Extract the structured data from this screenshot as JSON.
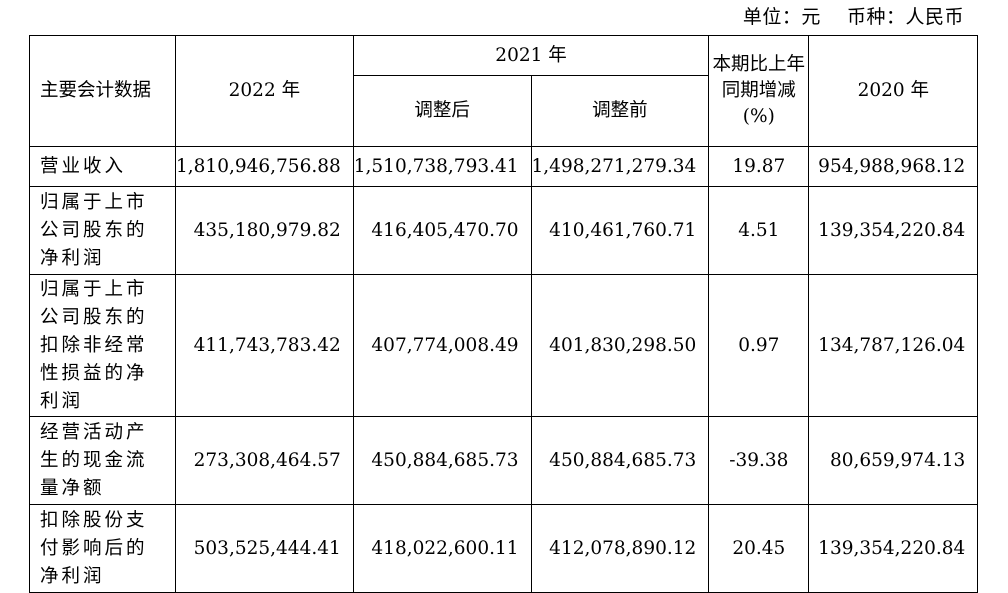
{
  "unit_line": "单位：元    币种：人民币",
  "header": {
    "item": "主要会计数据",
    "y2022": "2022 年",
    "y2021": "2021 年",
    "adjusted_after": "调整后",
    "adjusted_before": "调整前",
    "change": "本期比上年同期增减(%)",
    "y2020": "2020 年"
  },
  "rows": [
    {
      "item": "营业收入",
      "v2022": "1,810,946,756.88",
      "v2021_after": "1,510,738,793.41",
      "v2021_before": "1,498,271,279.34",
      "change": "19.87",
      "v2020": "954,988,968.12"
    },
    {
      "item": "归属于上市公司股东的净利润",
      "v2022": "435,180,979.82",
      "v2021_after": "416,405,470.70",
      "v2021_before": "410,461,760.71",
      "change": "4.51",
      "v2020": "139,354,220.84"
    },
    {
      "item": "归属于上市公司股东的扣除非经常性损益的净利润",
      "v2022": "411,743,783.42",
      "v2021_after": "407,774,008.49",
      "v2021_before": "401,830,298.50",
      "change": "0.97",
      "v2020": "134,787,126.04"
    },
    {
      "item": "经营活动产生的现金流量净额",
      "v2022": "273,308,464.57",
      "v2021_after": "450,884,685.73",
      "v2021_before": "450,884,685.73",
      "change": "-39.38",
      "v2020": "80,659,974.13"
    },
    {
      "item": "扣除股份支付影响后的净利润",
      "v2022": "503,525,444.41",
      "v2021_after": "418,022,600.11",
      "v2021_before": "412,078,890.12",
      "change": "20.45",
      "v2020": "139,354,220.84"
    }
  ]
}
